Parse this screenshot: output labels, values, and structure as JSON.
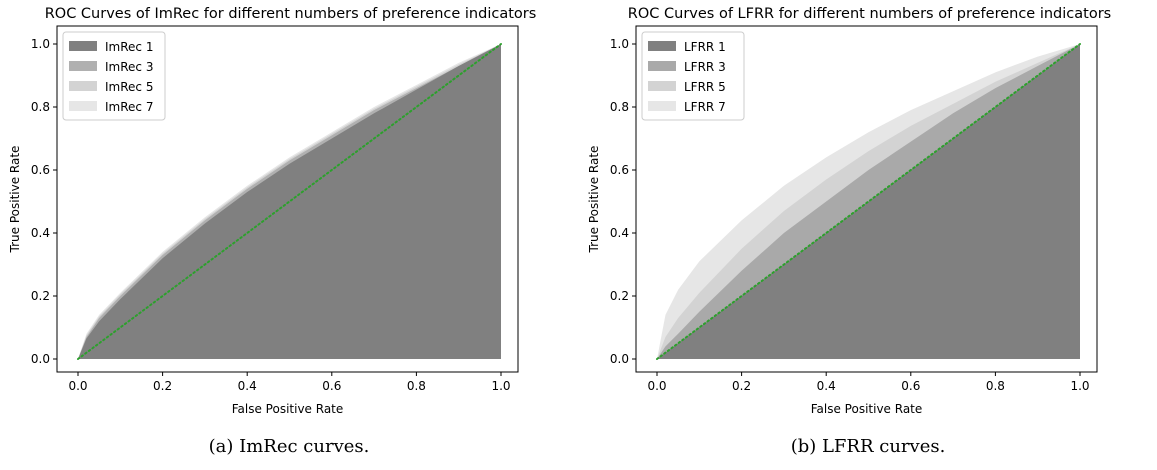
{
  "chart_data": [
    {
      "type": "area",
      "title": "ROC Curves of ImRec for different numbers of preference indicators",
      "xlabel": "False Positive Rate",
      "ylabel": "True Positive Rate",
      "xlim": [
        0,
        1
      ],
      "ylim": [
        0,
        1
      ],
      "xticks": [
        "0.0",
        "0.2",
        "0.4",
        "0.6",
        "0.8",
        "1.0"
      ],
      "yticks": [
        "0.0",
        "0.2",
        "0.4",
        "0.6",
        "0.8",
        "1.0"
      ],
      "grid": false,
      "legend_position": "top-left",
      "reference_line": {
        "style": "dotted",
        "color": "#2ca02c"
      },
      "caption": "(a)  ImRec curves.",
      "series": [
        {
          "name": "ImRec 7",
          "color": "#e6e6e6",
          "x": [
            0,
            0.02,
            0.05,
            0.1,
            0.2,
            0.3,
            0.4,
            0.5,
            0.6,
            0.7,
            0.8,
            0.9,
            1.0
          ],
          "y": [
            0,
            0.08,
            0.14,
            0.21,
            0.34,
            0.45,
            0.55,
            0.64,
            0.72,
            0.8,
            0.87,
            0.94,
            1.0
          ]
        },
        {
          "name": "ImRec 5",
          "color": "#d3d3d3",
          "x": [
            0,
            0.02,
            0.05,
            0.1,
            0.2,
            0.3,
            0.4,
            0.5,
            0.6,
            0.7,
            0.8,
            0.9,
            1.0
          ],
          "y": [
            0,
            0.075,
            0.135,
            0.205,
            0.335,
            0.445,
            0.545,
            0.635,
            0.715,
            0.795,
            0.865,
            0.935,
            1.0
          ]
        },
        {
          "name": "ImRec 3",
          "color": "#b0b0b0",
          "x": [
            0,
            0.02,
            0.05,
            0.1,
            0.2,
            0.3,
            0.4,
            0.5,
            0.6,
            0.7,
            0.8,
            0.9,
            1.0
          ],
          "y": [
            0,
            0.07,
            0.13,
            0.2,
            0.33,
            0.44,
            0.54,
            0.63,
            0.71,
            0.79,
            0.86,
            0.93,
            1.0
          ]
        },
        {
          "name": "ImRec 1",
          "color": "#808080",
          "x": [
            0,
            0.02,
            0.05,
            0.1,
            0.2,
            0.3,
            0.4,
            0.5,
            0.6,
            0.7,
            0.8,
            0.9,
            1.0
          ],
          "y": [
            0,
            0.065,
            0.12,
            0.19,
            0.32,
            0.43,
            0.53,
            0.62,
            0.7,
            0.78,
            0.855,
            0.93,
            1.0
          ]
        }
      ]
    },
    {
      "type": "area",
      "title": "ROC Curves of LFRR for different numbers of preference indicators",
      "xlabel": "False Positive Rate",
      "ylabel": "True Positive Rate",
      "xlim": [
        0,
        1
      ],
      "ylim": [
        0,
        1
      ],
      "xticks": [
        "0.0",
        "0.2",
        "0.4",
        "0.6",
        "0.8",
        "1.0"
      ],
      "yticks": [
        "0.0",
        "0.2",
        "0.4",
        "0.6",
        "0.8",
        "1.0"
      ],
      "grid": false,
      "legend_position": "top-left",
      "reference_line": {
        "style": "dotted",
        "color": "#2ca02c"
      },
      "caption": "(b)  LFRR curves.",
      "series": [
        {
          "name": "LFRR 7",
          "color": "#e6e6e6",
          "x": [
            0,
            0.02,
            0.05,
            0.1,
            0.2,
            0.3,
            0.4,
            0.5,
            0.6,
            0.7,
            0.8,
            0.9,
            1.0
          ],
          "y": [
            0,
            0.14,
            0.22,
            0.31,
            0.44,
            0.55,
            0.64,
            0.72,
            0.79,
            0.85,
            0.91,
            0.96,
            1.0
          ]
        },
        {
          "name": "LFRR 5",
          "color": "#d3d3d3",
          "x": [
            0,
            0.02,
            0.05,
            0.1,
            0.2,
            0.3,
            0.4,
            0.5,
            0.6,
            0.7,
            0.8,
            0.9,
            1.0
          ],
          "y": [
            0,
            0.07,
            0.13,
            0.21,
            0.35,
            0.47,
            0.57,
            0.66,
            0.74,
            0.81,
            0.88,
            0.94,
            1.0
          ]
        },
        {
          "name": "LFRR 3",
          "color": "#a9a9a9",
          "x": [
            0,
            0.02,
            0.05,
            0.1,
            0.2,
            0.3,
            0.4,
            0.5,
            0.6,
            0.7,
            0.8,
            0.9,
            1.0
          ],
          "y": [
            0,
            0.04,
            0.08,
            0.15,
            0.28,
            0.4,
            0.5,
            0.6,
            0.69,
            0.78,
            0.86,
            0.93,
            1.0
          ]
        },
        {
          "name": "LFRR 1",
          "color": "#808080",
          "x": [
            0,
            0.02,
            0.05,
            0.1,
            0.2,
            0.3,
            0.4,
            0.5,
            0.6,
            0.7,
            0.8,
            0.9,
            1.0
          ],
          "y": [
            0,
            0.02,
            0.05,
            0.1,
            0.2,
            0.3,
            0.4,
            0.5,
            0.6,
            0.7,
            0.8,
            0.9,
            1.0
          ]
        }
      ]
    }
  ]
}
